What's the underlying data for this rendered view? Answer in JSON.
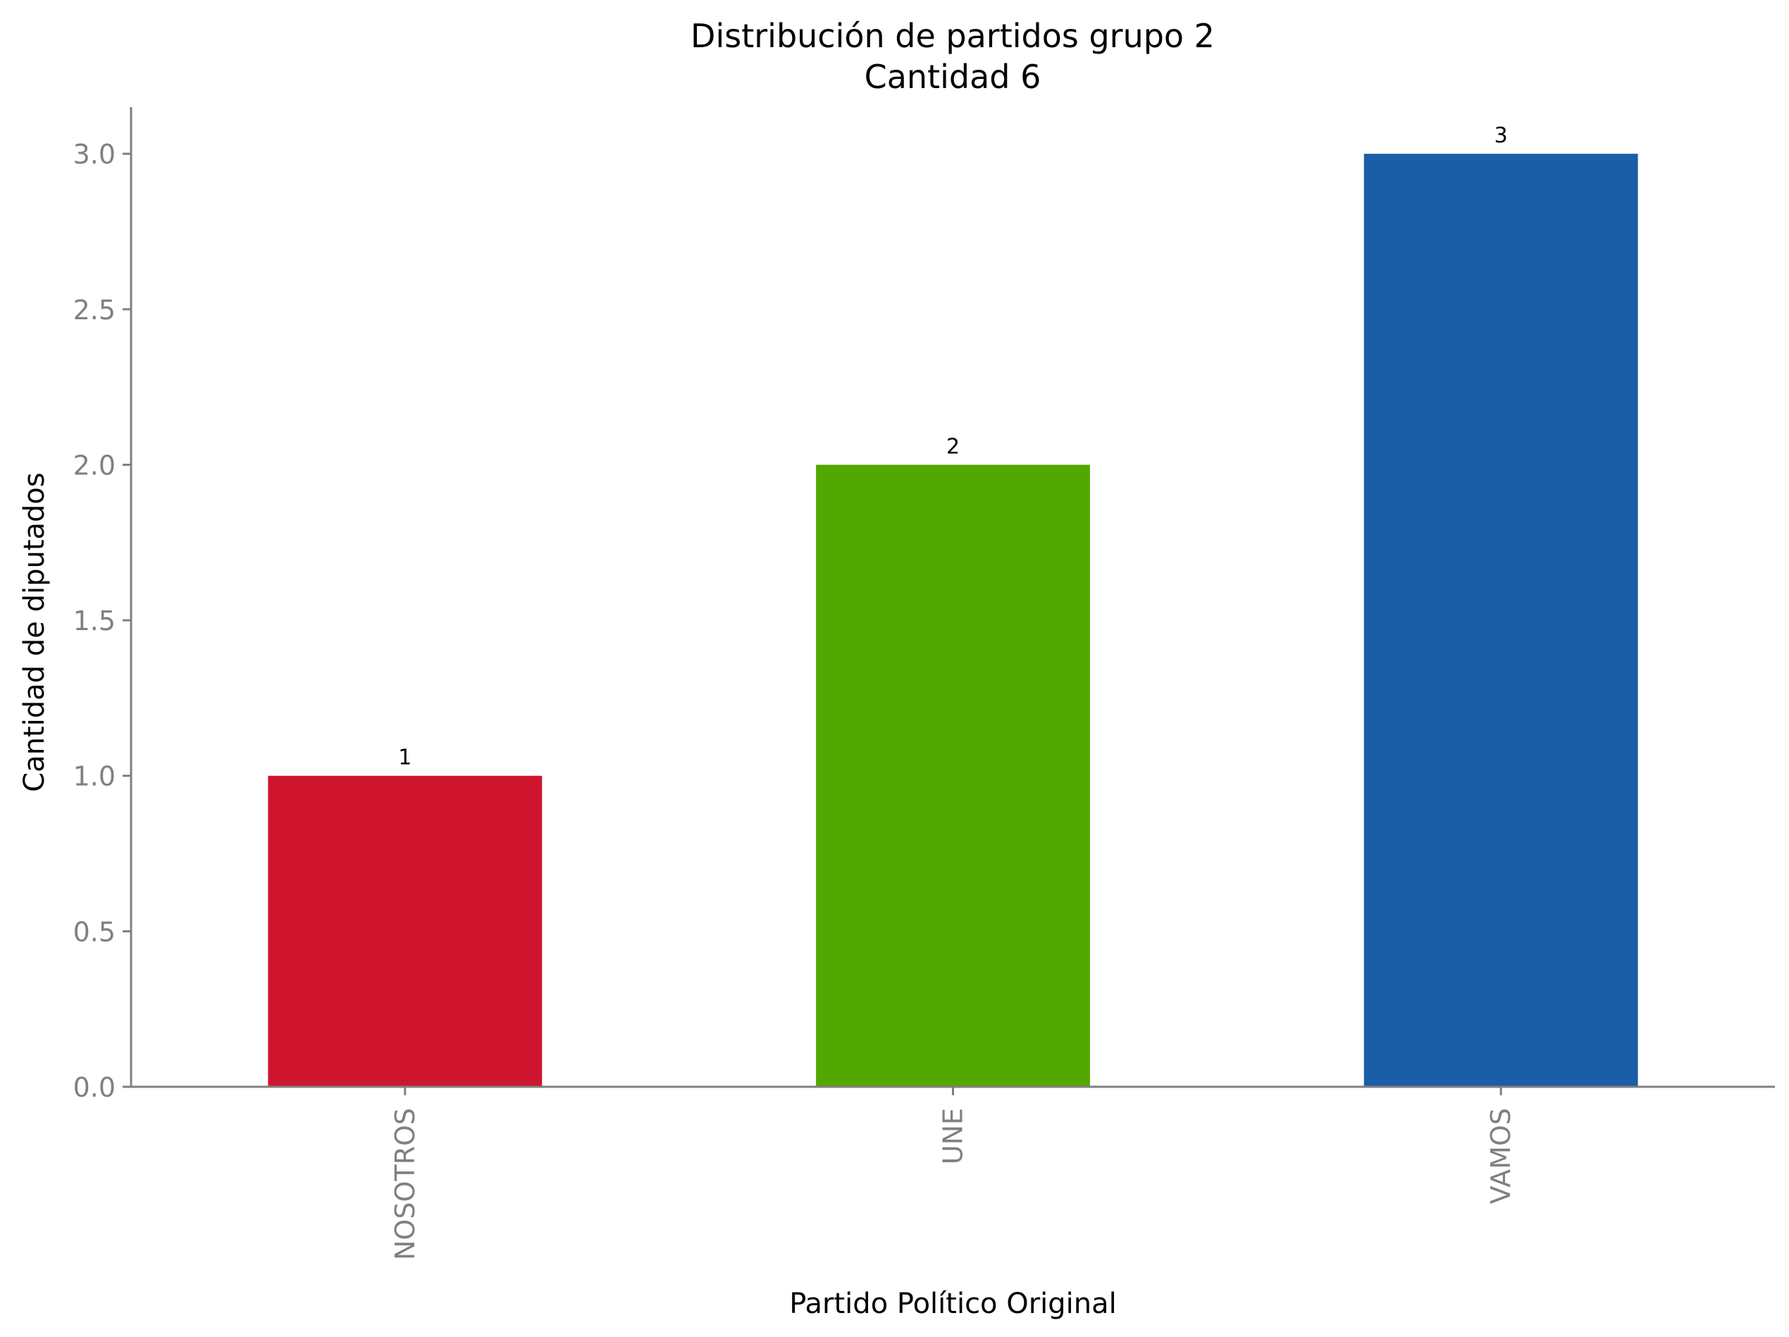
{
  "chart_data": {
    "type": "bar",
    "title": "Distribución de partidos grupo 2",
    "subtitle": "Cantidad 6",
    "xlabel": "Partido Político Original",
    "ylabel": "Cantidad de diputados",
    "categories": [
      "NOSOTROS",
      "UNE",
      "VAMOS"
    ],
    "values": [
      1,
      2,
      3
    ],
    "data_labels": [
      "1",
      "2",
      "3"
    ],
    "colors": [
      "#cf152d",
      "#52a800",
      "#1a5ea8"
    ],
    "ylim": [
      0,
      3.15
    ],
    "yticks": [
      0.0,
      0.5,
      1.0,
      1.5,
      2.0,
      2.5,
      3.0
    ],
    "ytick_labels": [
      "0.0",
      "0.5",
      "1.0",
      "1.5",
      "2.0",
      "2.5",
      "3.0"
    ],
    "grid": false,
    "legend": "none",
    "axis_color": "#7f7f7f",
    "tick_label_color": "#808080",
    "text_color": "#000000"
  }
}
